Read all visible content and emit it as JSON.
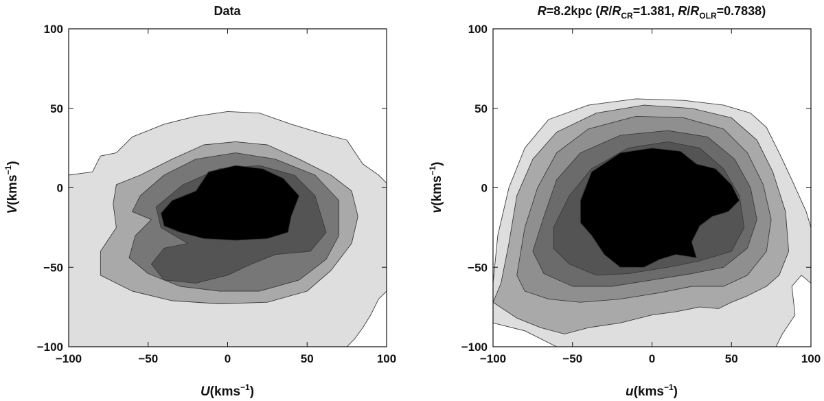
{
  "chart_data": [
    {
      "type": "contour",
      "title": "Data",
      "xlabel": {
        "main": "U",
        "unit_prefix": "(kms",
        "exponent": "−1",
        "unit_suffix": ")"
      },
      "ylabel": {
        "main": "V",
        "unit_prefix": "(kms",
        "exponent": "−1",
        "unit_suffix": ")"
      },
      "xlim": [
        -100,
        100
      ],
      "ylim": [
        -100,
        100
      ],
      "xticks": [
        -100,
        -50,
        0,
        50,
        100
      ],
      "yticks": [
        -100,
        -50,
        0,
        50,
        100
      ],
      "xtick_labels": [
        "−100",
        "−50",
        "0",
        "50",
        "100"
      ],
      "ytick_labels": [
        "−100",
        "−50",
        "0",
        "50",
        "100"
      ],
      "levels": [
        {
          "name": "level-1",
          "color": "#dedede",
          "outline": [
            [
              -100,
              8
            ],
            [
              -85,
              10
            ],
            [
              -80,
              20
            ],
            [
              -70,
              22
            ],
            [
              -60,
              32
            ],
            [
              -40,
              40
            ],
            [
              -20,
              45
            ],
            [
              0,
              48
            ],
            [
              20,
              47
            ],
            [
              40,
              40
            ],
            [
              60,
              34
            ],
            [
              75,
              30
            ],
            [
              85,
              15
            ],
            [
              95,
              8
            ],
            [
              100,
              3
            ],
            [
              100,
              -65
            ],
            [
              95,
              -70
            ],
            [
              90,
              -80
            ],
            [
              85,
              -88
            ],
            [
              80,
              -95
            ],
            [
              75,
              -100
            ],
            [
              -100,
              -100
            ]
          ]
        },
        {
          "name": "level-2",
          "color": "#a9a9a9",
          "outline": [
            [
              -70,
              2
            ],
            [
              -55,
              8
            ],
            [
              -35,
              18
            ],
            [
              -15,
              27
            ],
            [
              5,
              29
            ],
            [
              25,
              27
            ],
            [
              45,
              18
            ],
            [
              65,
              8
            ],
            [
              78,
              -2
            ],
            [
              82,
              -18
            ],
            [
              78,
              -35
            ],
            [
              65,
              -52
            ],
            [
              50,
              -65
            ],
            [
              25,
              -72
            ],
            [
              -5,
              -73
            ],
            [
              -35,
              -71
            ],
            [
              -60,
              -65
            ],
            [
              -80,
              -55
            ],
            [
              -80,
              -40
            ],
            [
              -70,
              -25
            ],
            [
              -72,
              -10
            ]
          ]
        },
        {
          "name": "level-3",
          "color": "#777777",
          "outline": [
            [
              -55,
              -5
            ],
            [
              -40,
              8
            ],
            [
              -20,
              18
            ],
            [
              5,
              22
            ],
            [
              30,
              18
            ],
            [
              55,
              8
            ],
            [
              70,
              -8
            ],
            [
              70,
              -30
            ],
            [
              62,
              -45
            ],
            [
              45,
              -58
            ],
            [
              20,
              -65
            ],
            [
              -5,
              -65
            ],
            [
              -30,
              -62
            ],
            [
              -50,
              -54
            ],
            [
              -62,
              -44
            ],
            [
              -58,
              -30
            ],
            [
              -48,
              -20
            ],
            [
              -60,
              -15
            ]
          ]
        },
        {
          "name": "level-4",
          "color": "#545454",
          "outline": [
            [
              -45,
              -12
            ],
            [
              -28,
              2
            ],
            [
              -5,
              12
            ],
            [
              20,
              14
            ],
            [
              42,
              8
            ],
            [
              55,
              -5
            ],
            [
              62,
              -28
            ],
            [
              52,
              -40
            ],
            [
              30,
              -42
            ],
            [
              15,
              -48
            ],
            [
              0,
              -55
            ],
            [
              -20,
              -60
            ],
            [
              -40,
              -58
            ],
            [
              -48,
              -48
            ],
            [
              -40,
              -38
            ],
            [
              -25,
              -35
            ],
            [
              -42,
              -25
            ]
          ]
        },
        {
          "name": "level-5",
          "color": "#000000",
          "outline": [
            [
              -42,
              -16
            ],
            [
              -35,
              -8
            ],
            [
              -20,
              -2
            ],
            [
              -12,
              10
            ],
            [
              5,
              14
            ],
            [
              22,
              12
            ],
            [
              35,
              6
            ],
            [
              45,
              -5
            ],
            [
              40,
              -18
            ],
            [
              38,
              -28
            ],
            [
              25,
              -32
            ],
            [
              5,
              -33
            ],
            [
              -15,
              -32
            ],
            [
              -30,
              -28
            ],
            [
              -40,
              -24
            ]
          ]
        }
      ]
    },
    {
      "type": "contour",
      "title": {
        "parts": [
          {
            "text": "R",
            "style": "italic"
          },
          {
            "text": "=8.2kpc ("
          },
          {
            "text": "R",
            "style": "italic"
          },
          {
            "text": "/"
          },
          {
            "text": "R",
            "style": "italic"
          },
          {
            "text": "CR",
            "style": "sub"
          },
          {
            "text": "=1.381, "
          },
          {
            "text": "R",
            "style": "italic"
          },
          {
            "text": "/"
          },
          {
            "text": "R",
            "style": "italic"
          },
          {
            "text": "OLR",
            "style": "sub"
          },
          {
            "text": "=0.7838)"
          }
        ]
      },
      "xlabel": {
        "main": "u",
        "unit_prefix": "(kms",
        "exponent": "−1",
        "unit_suffix": ")"
      },
      "ylabel": {
        "main": "v",
        "unit_prefix": "(kms",
        "exponent": "−1",
        "unit_suffix": ")"
      },
      "xlim": [
        -100,
        100
      ],
      "ylim": [
        -100,
        100
      ],
      "xticks": [
        -100,
        -50,
        0,
        50,
        100
      ],
      "yticks": [
        -100,
        -50,
        0,
        50,
        100
      ],
      "xtick_labels": [
        "−100",
        "−50",
        "0",
        "50",
        "100"
      ],
      "ytick_labels": [
        "−100",
        "−50",
        "0",
        "50",
        "100"
      ],
      "levels": [
        {
          "name": "level-1",
          "color": "#dedede",
          "outline": [
            [
              -100,
              -60
            ],
            [
              -97,
              -30
            ],
            [
              -90,
              0
            ],
            [
              -80,
              25
            ],
            [
              -65,
              43
            ],
            [
              -40,
              52
            ],
            [
              -10,
              56
            ],
            [
              20,
              55
            ],
            [
              45,
              52
            ],
            [
              62,
              47
            ],
            [
              72,
              38
            ],
            [
              80,
              22
            ],
            [
              88,
              5
            ],
            [
              97,
              -15
            ],
            [
              100,
              -25
            ],
            [
              100,
              -60
            ],
            [
              94,
              -55
            ],
            [
              88,
              -62
            ],
            [
              90,
              -80
            ],
            [
              82,
              -92
            ],
            [
              78,
              -100
            ],
            [
              -60,
              -100
            ],
            [
              -80,
              -90
            ],
            [
              -100,
              -85
            ]
          ]
        },
        {
          "name": "level-2",
          "color": "#a9a9a9",
          "outline": [
            [
              -100,
              -72
            ],
            [
              -95,
              -60
            ],
            [
              -90,
              -35
            ],
            [
              -85,
              -5
            ],
            [
              -75,
              18
            ],
            [
              -60,
              35
            ],
            [
              -35,
              47
            ],
            [
              -5,
              52
            ],
            [
              25,
              50
            ],
            [
              50,
              44
            ],
            [
              66,
              30
            ],
            [
              76,
              10
            ],
            [
              84,
              -15
            ],
            [
              86,
              -40
            ],
            [
              80,
              -55
            ],
            [
              72,
              -62
            ],
            [
              60,
              -68
            ],
            [
              50,
              -72
            ],
            [
              42,
              -76
            ],
            [
              30,
              -75
            ],
            [
              15,
              -78
            ],
            [
              0,
              -80
            ],
            [
              -20,
              -85
            ],
            [
              -40,
              -88
            ],
            [
              -55,
              -92
            ],
            [
              -70,
              -88
            ],
            [
              -85,
              -82
            ]
          ]
        },
        {
          "name": "level-3",
          "color": "#8f8f8f",
          "outline": [
            [
              -85,
              -55
            ],
            [
              -80,
              -25
            ],
            [
              -72,
              0
            ],
            [
              -60,
              22
            ],
            [
              -40,
              37
            ],
            [
              -10,
              45
            ],
            [
              20,
              44
            ],
            [
              45,
              37
            ],
            [
              60,
              22
            ],
            [
              70,
              2
            ],
            [
              75,
              -20
            ],
            [
              72,
              -40
            ],
            [
              60,
              -55
            ],
            [
              45,
              -62
            ],
            [
              25,
              -62
            ],
            [
              5,
              -66
            ],
            [
              -20,
              -70
            ],
            [
              -45,
              -72
            ],
            [
              -65,
              -70
            ],
            [
              -80,
              -65
            ]
          ]
        },
        {
          "name": "level-4",
          "color": "#6b6b6b",
          "outline": [
            [
              -75,
              -40
            ],
            [
              -68,
              -18
            ],
            [
              -60,
              5
            ],
            [
              -45,
              22
            ],
            [
              -20,
              33
            ],
            [
              10,
              36
            ],
            [
              35,
              32
            ],
            [
              52,
              18
            ],
            [
              62,
              0
            ],
            [
              66,
              -20
            ],
            [
              60,
              -38
            ],
            [
              45,
              -50
            ],
            [
              25,
              -54
            ],
            [
              0,
              -58
            ],
            [
              -25,
              -62
            ],
            [
              -50,
              -62
            ],
            [
              -68,
              -54
            ]
          ]
        },
        {
          "name": "level-5",
          "color": "#545454",
          "outline": [
            [
              -62,
              -25
            ],
            [
              -52,
              -5
            ],
            [
              -38,
              12
            ],
            [
              -15,
              25
            ],
            [
              10,
              29
            ],
            [
              30,
              25
            ],
            [
              45,
              12
            ],
            [
              55,
              -5
            ],
            [
              58,
              -25
            ],
            [
              50,
              -40
            ],
            [
              30,
              -46
            ],
            [
              10,
              -50
            ],
            [
              -15,
              -54
            ],
            [
              -35,
              -55
            ],
            [
              -52,
              -48
            ],
            [
              -62,
              -38
            ]
          ]
        },
        {
          "name": "level-6",
          "color": "#000000",
          "outline": [
            [
              -45,
              -8
            ],
            [
              -38,
              10
            ],
            [
              -20,
              22
            ],
            [
              0,
              25
            ],
            [
              18,
              23
            ],
            [
              28,
              15
            ],
            [
              40,
              12
            ],
            [
              50,
              2
            ],
            [
              55,
              -8
            ],
            [
              48,
              -15
            ],
            [
              38,
              -18
            ],
            [
              30,
              -24
            ],
            [
              25,
              -34
            ],
            [
              28,
              -44
            ],
            [
              15,
              -42
            ],
            [
              5,
              -45
            ],
            [
              -5,
              -50
            ],
            [
              -20,
              -50
            ],
            [
              -30,
              -42
            ],
            [
              -38,
              -30
            ],
            [
              -45,
              -22
            ]
          ]
        }
      ]
    }
  ]
}
